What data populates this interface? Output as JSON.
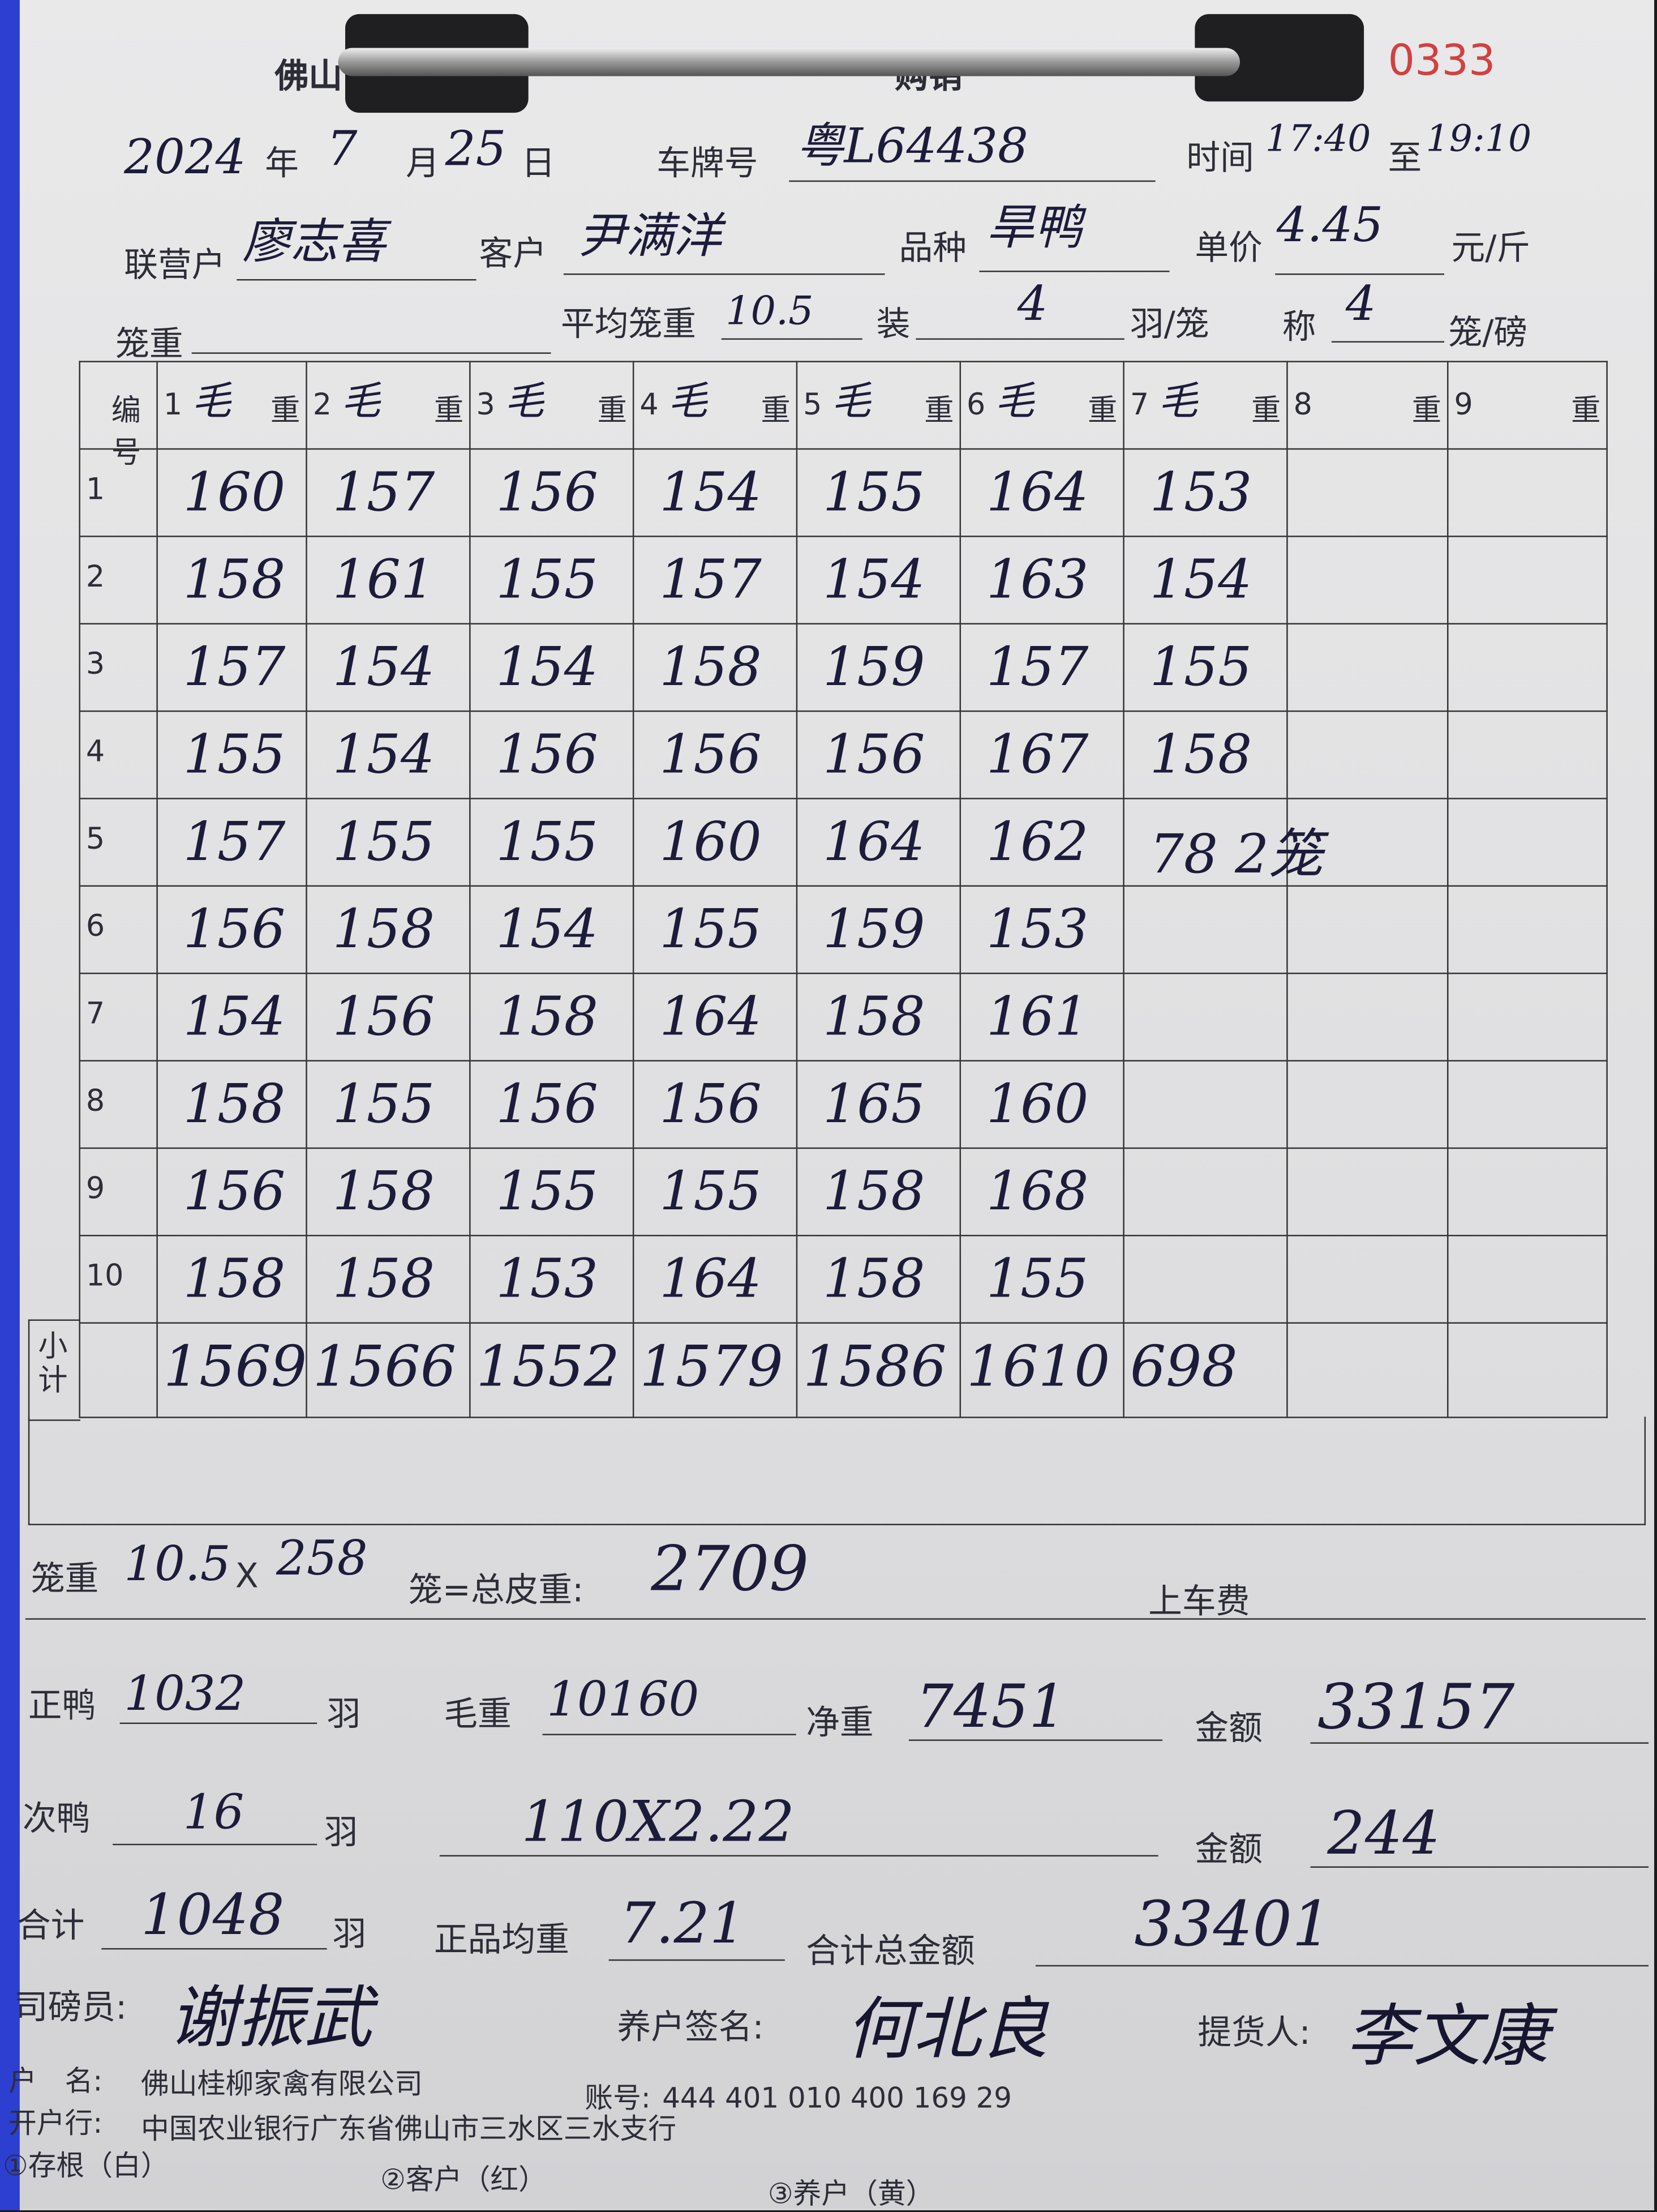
{
  "header": {
    "company_fragment": "佛山",
    "title_fragment": "购销",
    "serial_fragment": "0333"
  },
  "form": {
    "year": "2024",
    "year_label": "年",
    "month": "7",
    "month_label": "月",
    "day": "25",
    "day_label": "日",
    "plate_label": "车牌号",
    "plate": "粤L64438",
    "time_label": "时间",
    "time_from": "17:40",
    "time_to_label": "至",
    "time_to": "19:10",
    "partner_label": "联营户",
    "partner": "廖志喜",
    "customer_label": "客户",
    "customer": "尹满洋",
    "variety_label": "品种",
    "variety": "旱鸭",
    "unit_price_label": "单价",
    "unit_price": "4.45",
    "unit_price_unit": "元/斤",
    "cage_weight_label": "笼重",
    "cage_weight": "",
    "avg_cage_weight_label": "平均笼重",
    "avg_cage_weight": "10.5",
    "load_label": "装",
    "load": "4",
    "load_unit": "羽/笼",
    "weigh_label": "称",
    "weigh": "4",
    "weigh_unit": "笼/磅"
  },
  "table": {
    "num_header": "编号",
    "columns": [
      {
        "index": "1",
        "label": "毛",
        "suffix": "重",
        "values": [
          "160",
          "158",
          "157",
          "155",
          "157",
          "156",
          "154",
          "158",
          "156",
          "158"
        ],
        "subtotal": "1569"
      },
      {
        "index": "2",
        "label": "毛",
        "suffix": "重",
        "values": [
          "157",
          "161",
          "154",
          "154",
          "155",
          "158",
          "156",
          "155",
          "158",
          "158"
        ],
        "subtotal": "1566"
      },
      {
        "index": "3",
        "label": "毛",
        "suffix": "重",
        "values": [
          "156",
          "155",
          "154",
          "156",
          "155",
          "154",
          "158",
          "156",
          "155",
          "153"
        ],
        "subtotal": "1552"
      },
      {
        "index": "4",
        "label": "毛",
        "suffix": "重",
        "values": [
          "154",
          "157",
          "158",
          "156",
          "160",
          "155",
          "164",
          "156",
          "155",
          "164"
        ],
        "subtotal": "1579"
      },
      {
        "index": "5",
        "label": "毛",
        "suffix": "重",
        "values": [
          "155",
          "154",
          "159",
          "156",
          "164",
          "159",
          "158",
          "165",
          "158",
          "158"
        ],
        "subtotal": "1586"
      },
      {
        "index": "6",
        "label": "毛",
        "suffix": "重",
        "values": [
          "164",
          "163",
          "157",
          "167",
          "162",
          "153",
          "161",
          "160",
          "168",
          "155"
        ],
        "subtotal": "1610"
      },
      {
        "index": "7",
        "label": "毛",
        "suffix": "重",
        "values": [
          "153",
          "154",
          "155",
          "158",
          "78 2笼",
          "",
          "",
          "",
          "",
          ""
        ],
        "subtotal": "698"
      },
      {
        "index": "8",
        "label": "",
        "suffix": "重",
        "values": [
          "",
          "",
          "",
          "",
          "",
          "",
          "",
          "",
          "",
          ""
        ],
        "subtotal": ""
      },
      {
        "index": "9",
        "label": "",
        "suffix": "重",
        "values": [
          "",
          "",
          "",
          "",
          "",
          "",
          "",
          "",
          "",
          ""
        ],
        "subtotal": ""
      }
    ],
    "row_numbers": [
      "1",
      "2",
      "3",
      "4",
      "5",
      "6",
      "7",
      "8",
      "9",
      "10"
    ],
    "subtotal_label": "小计"
  },
  "summary": {
    "cage_weight_label": "笼重",
    "cage_weight": "10.5",
    "times": "X",
    "cages": "258",
    "cages_label": "笼=总皮重:",
    "total_tare": "2709",
    "loading_fee_label": "上车费",
    "good_ducks_label": "正鸭",
    "good_ducks": "1032",
    "feather_unit": "羽",
    "gross_label": "毛重",
    "gross": "10160",
    "net_label": "净重",
    "net": "7451",
    "amount_label": "金额",
    "amount": "33157",
    "second_ducks_label": "次鸭",
    "second_ducks": "16",
    "second_calc": "110X2.22",
    "amount2": "244",
    "total_label": "合计",
    "total_ducks": "1048",
    "avg_good_label": "正品均重",
    "avg_good": "7.21",
    "total_amount_label": "合计总金额",
    "total_amount": "33401"
  },
  "signatures": {
    "weigher_label": "司磅员:",
    "weigher": "谢振武",
    "farmer_label": "养户签名:",
    "farmer": "何北良",
    "picker_label": "提货人:",
    "picker": "李文康"
  },
  "footer": {
    "account_name_label": "户　名:",
    "account_name": "佛山桂柳家禽有限公司",
    "account_no_label": "账号:",
    "account_no": "444 401 010 400 169 29",
    "bank_label": "开户行:",
    "bank": "中国农业银行广东省佛山市三水区三水支行",
    "copy1": "①存根（白）",
    "copy2": "②客户（红）",
    "copy3": "③养户（黄）"
  }
}
